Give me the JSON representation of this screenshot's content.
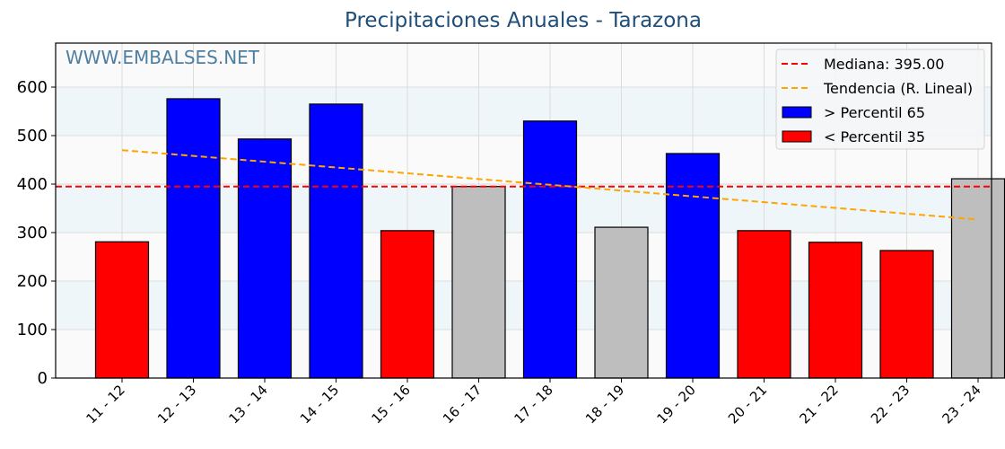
{
  "chart_data": {
    "type": "bar",
    "title": "Precipitaciones Anuales - Tarazona",
    "watermark": "WWW.EMBALSES.NET",
    "xlabel": "",
    "ylabel": "",
    "ylim": [
      0,
      690
    ],
    "yticks": [
      0,
      100,
      200,
      300,
      400,
      500,
      600
    ],
    "grid": true,
    "legend_position": "upper right",
    "categories": [
      "11 - 12",
      "12 - 13",
      "13 - 14",
      "14 - 15",
      "15 - 16",
      "16 - 17",
      "17 - 18",
      "18 - 19",
      "19 - 20",
      "20 - 21",
      "21 - 22",
      "22 - 23",
      "23 - 24"
    ],
    "values": [
      281,
      576,
      493,
      565,
      304,
      395,
      530,
      311,
      463,
      304,
      280,
      263,
      411
    ],
    "bar_classes": [
      "low",
      "high",
      "high",
      "high",
      "low",
      "mid",
      "high",
      "mid",
      "high",
      "low",
      "low",
      "low",
      "mid"
    ],
    "colors": {
      "high": "#0000ff",
      "low": "#ff0000",
      "mid": "#bebebe",
      "median_line": "#ff0000",
      "trend_line": "#ffa500",
      "band": "#eef6f9",
      "title": "#1f4e79",
      "watermark": "#4f7fa0"
    },
    "median": 395.0,
    "trend": {
      "start": 470,
      "end": 327
    },
    "legend": [
      {
        "label": "Mediana: 395.00",
        "type": "line",
        "color": "#ff0000"
      },
      {
        "label": "Tendencia (R. Lineal)",
        "type": "line",
        "color": "#ffa500"
      },
      {
        "label": " > Percentil 65",
        "type": "patch",
        "color": "#0000ff"
      },
      {
        "label": " < Percentil 35",
        "type": "patch",
        "color": "#ff0000"
      }
    ]
  }
}
